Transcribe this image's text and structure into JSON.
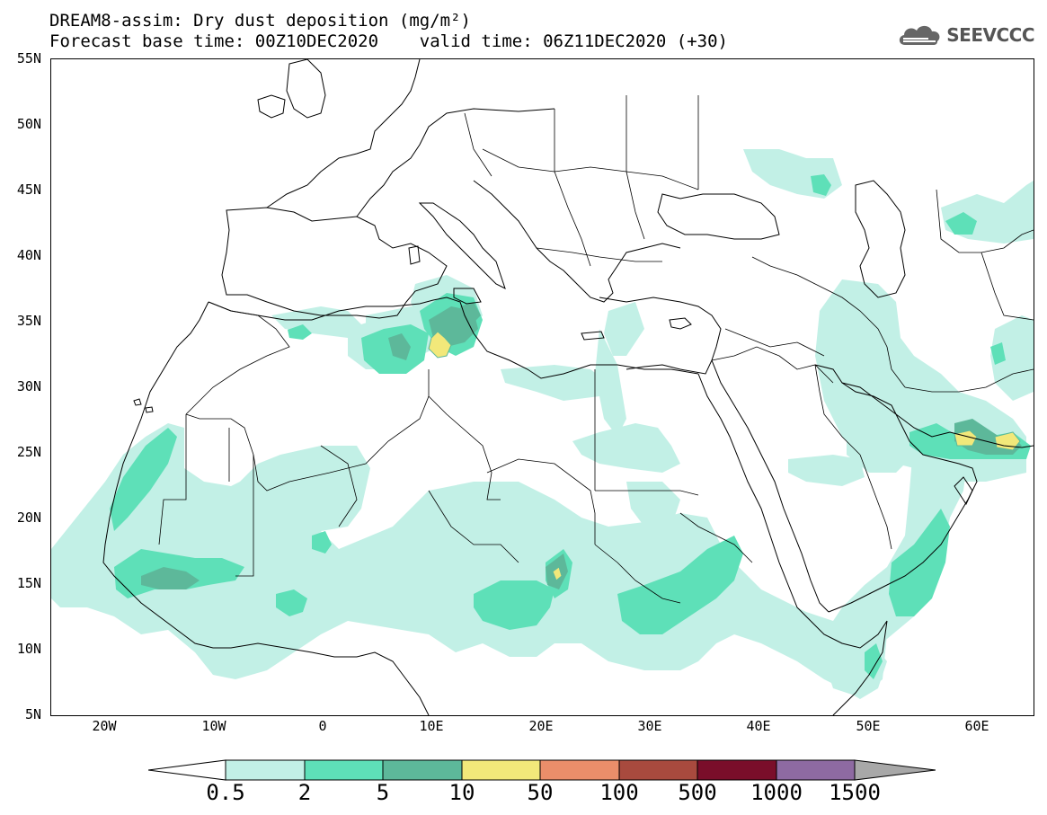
{
  "title_line1": "DREAM8-assim: Dry dust deposition (mg/m²)",
  "title_line2": "Forecast base time: 00Z10DEC2020    valid time: 06Z11DEC2020 (+30)",
  "logo_text": "SEEVCCC",
  "map": {
    "lon_range": [
      -25,
      65
    ],
    "lat_range": [
      5,
      55
    ],
    "lat_ticks": [
      "55N",
      "50N",
      "45N",
      "40N",
      "35N",
      "30N",
      "25N",
      "20N",
      "15N",
      "10N",
      "5N"
    ],
    "lon_ticks": [
      "20W",
      "10W",
      "0",
      "10E",
      "20E",
      "30E",
      "40E",
      "50E",
      "60E"
    ]
  },
  "colorbar": {
    "labels": [
      "0.5",
      "2",
      "5",
      "10",
      "50",
      "100",
      "500",
      "1000",
      "1500"
    ],
    "colors": [
      "#c2f0e6",
      "#5ee0b8",
      "#5db89a",
      "#f2e87a",
      "#ea8e6a",
      "#a84a3e",
      "#7a0e2a",
      "#8e6aa2",
      "#a8a8a8"
    ]
  },
  "field_colors": {
    "level1": "#c2f0e6",
    "level2": "#5ee0b8",
    "level3": "#5db89a",
    "level4": "#f2e87a"
  }
}
